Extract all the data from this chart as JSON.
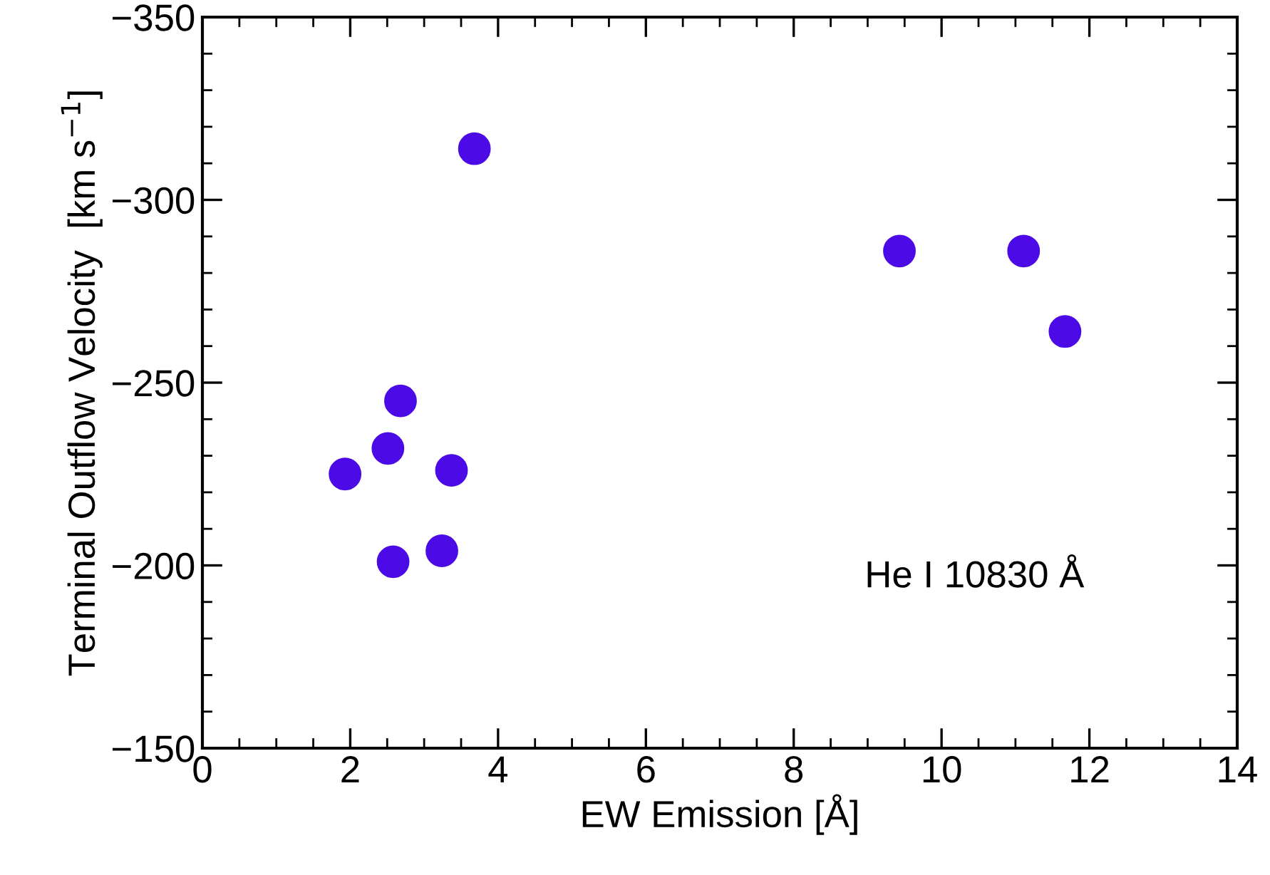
{
  "chart_data": {
    "type": "scatter",
    "xlabel": "EW Emission [Å]",
    "ylabel": "Terminal Outflow Velocity  [km s$^{−1}$]",
    "annotations": [
      "He I 10830 Å"
    ],
    "series": [
      {
        "color": "#4b0ae6",
        "x": [
          3.68,
          9.43,
          11.11,
          11.67,
          2.68,
          2.51,
          1.93,
          3.37,
          3.24,
          2.58
        ],
        "values": [
          -314,
          -286,
          -286,
          -264,
          -245,
          -232,
          -225,
          -226,
          -204,
          -201
        ]
      }
    ],
    "marker": "circle",
    "grid": false,
    "legend": false,
    "xlim": [
      0,
      14
    ],
    "xticks": [
      0,
      2,
      4,
      6,
      8,
      10,
      12,
      14
    ],
    "ylim": [
      -150,
      -350
    ],
    "yticks": [
      {
        "value": -350,
        "label": "−350"
      },
      {
        "value": -300,
        "label": "−300"
      },
      {
        "value": -250,
        "label": "−250"
      },
      {
        "value": -200,
        "label": "−200"
      },
      {
        "value": -150,
        "label": "−150"
      }
    ]
  }
}
